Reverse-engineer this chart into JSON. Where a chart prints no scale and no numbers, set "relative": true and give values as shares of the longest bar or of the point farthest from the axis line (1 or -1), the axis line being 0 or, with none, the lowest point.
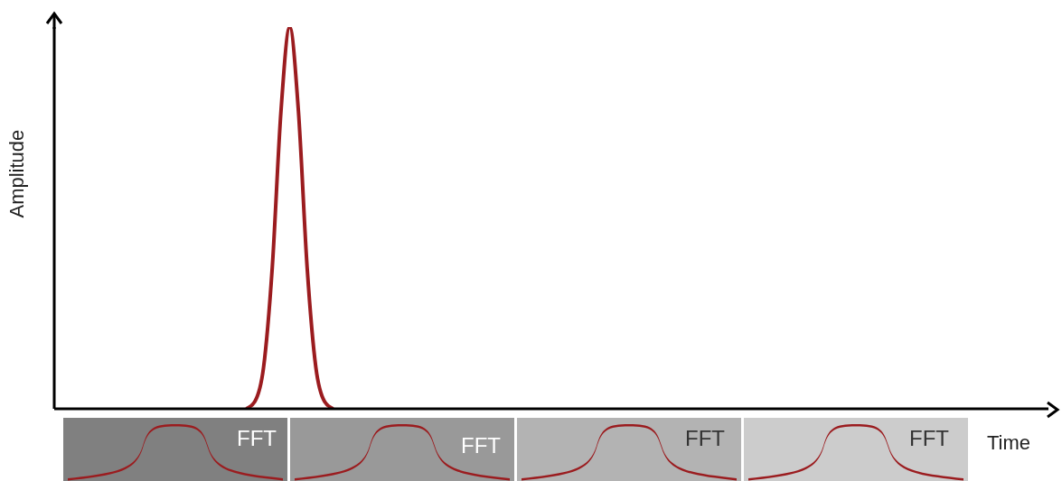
{
  "chart_data": {
    "type": "line",
    "relative": true,
    "xlabel": "Time",
    "ylabel": "Amplitude",
    "annotations": [
      "FFT",
      "FFT",
      "FFT",
      "FFT"
    ],
    "categories": [
      null,
      null,
      null,
      null,
      null,
      null,
      null,
      null,
      null,
      null,
      null,
      null,
      null,
      null,
      null,
      null,
      null,
      null,
      null,
      null,
      null,
      null,
      null,
      null,
      null,
      null,
      null,
      null,
      null,
      null,
      null,
      null,
      null,
      null,
      null,
      null,
      null,
      null,
      null,
      null,
      null,
      null,
      null,
      null,
      null,
      null,
      null,
      null,
      null,
      null,
      null,
      null,
      null,
      null,
      null,
      null,
      null,
      null,
      null,
      null,
      null,
      null,
      null,
      null,
      null,
      null,
      null,
      null,
      null,
      null,
      null,
      null,
      null,
      null,
      null,
      null,
      null,
      null,
      null,
      null,
      null,
      null,
      null,
      null,
      null,
      null,
      null,
      null,
      null,
      null,
      null,
      null,
      null,
      null,
      null,
      null,
      null,
      null,
      null,
      null,
      null,
      null,
      null,
      null,
      null,
      null,
      null,
      null,
      null,
      null,
      null,
      null,
      null,
      null,
      null
    ],
    "series": [
      {
        "color": "#9b1c1f",
        "values": [
          null,
          null,
          null,
          null,
          null,
          null,
          null,
          null,
          null,
          null,
          null,
          null,
          null,
          null,
          null,
          null,
          null,
          null,
          null,
          null,
          null,
          null,
          0,
          0.019,
          0.108,
          0.37,
          0.78,
          1,
          0.78,
          0.37,
          0.108,
          0.019,
          0,
          null,
          null,
          null,
          null,
          null,
          null,
          null,
          null,
          null,
          null,
          null,
          null,
          null,
          null,
          null,
          null,
          null,
          null,
          null,
          null,
          null,
          null,
          null,
          null,
          null,
          null,
          null,
          null,
          null,
          null,
          null,
          null,
          null,
          null,
          null,
          null,
          null,
          null,
          null,
          null,
          null,
          null,
          null,
          null,
          null,
          null,
          null,
          null,
          null,
          null,
          null,
          null,
          null,
          null,
          null,
          null,
          null,
          null,
          null,
          null,
          null,
          null,
          null,
          null,
          null,
          null,
          null,
          null,
          null,
          null,
          null,
          null,
          null,
          null,
          null,
          null,
          null,
          null,
          null,
          null,
          null,
          null
        ]
      }
    ]
  }
}
